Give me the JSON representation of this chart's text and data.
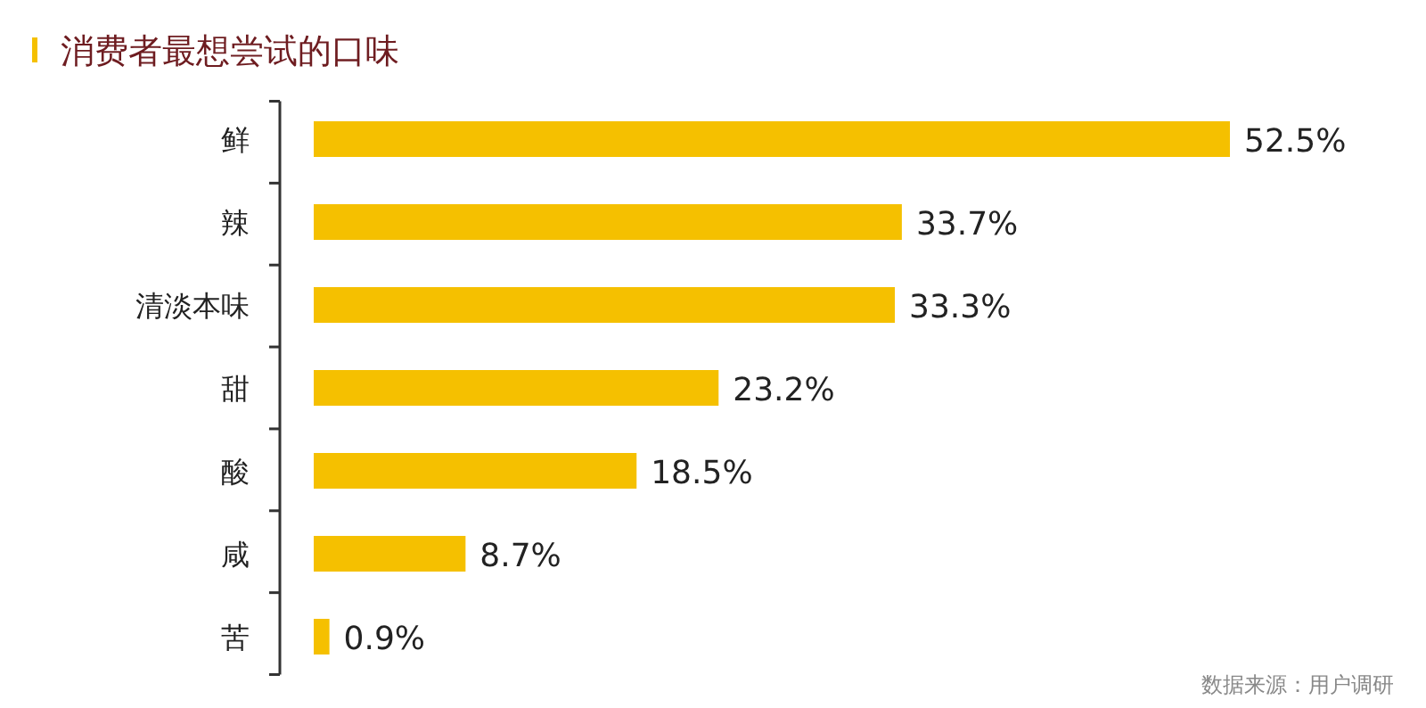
{
  "chart_data": {
    "type": "bar",
    "orientation": "horizontal",
    "title": "消费者最想尝试的口味",
    "categories": [
      "鲜",
      "辣",
      "清淡本味",
      "甜",
      "酸",
      "咸",
      "苦"
    ],
    "values": [
      52.5,
      33.7,
      33.3,
      23.2,
      18.5,
      8.7,
      0.9
    ],
    "value_labels": [
      "52.5%",
      "33.7%",
      "33.3%",
      "23.2%",
      "18.5%",
      "8.7%",
      "0.9%"
    ],
    "color": "#f5c000",
    "annotations": [
      "数据来源：用户调研"
    ]
  }
}
